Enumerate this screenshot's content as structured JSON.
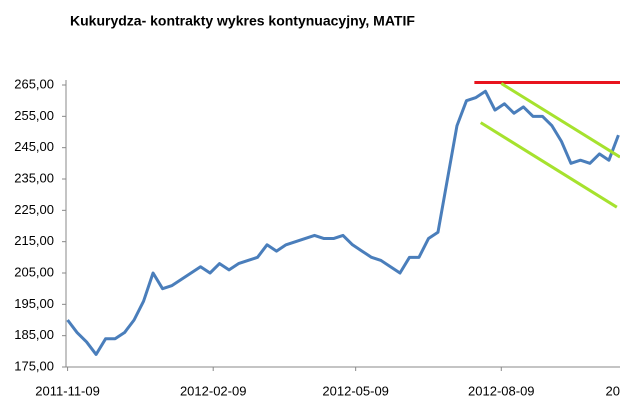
{
  "chart_data": {
    "type": "line",
    "title": "Kukurydza- kontrakty wykres kontynuacyjny, MATIF",
    "x": [
      "2011-11-09",
      "2011-11-15",
      "2011-11-21",
      "2011-11-27",
      "2011-12-03",
      "2011-12-09",
      "2011-12-15",
      "2011-12-21",
      "2011-12-27",
      "2012-01-02",
      "2012-01-08",
      "2012-01-14",
      "2012-01-20",
      "2012-01-26",
      "2012-02-01",
      "2012-02-07",
      "2012-02-13",
      "2012-02-19",
      "2012-02-25",
      "2012-03-02",
      "2012-03-08",
      "2012-03-14",
      "2012-03-20",
      "2012-03-26",
      "2012-04-01",
      "2012-04-07",
      "2012-04-13",
      "2012-04-19",
      "2012-04-25",
      "2012-05-01",
      "2012-05-07",
      "2012-05-13",
      "2012-05-19",
      "2012-05-25",
      "2012-05-31",
      "2012-06-06",
      "2012-06-12",
      "2012-06-18",
      "2012-06-24",
      "2012-06-30",
      "2012-07-06",
      "2012-07-12",
      "2012-07-18",
      "2012-07-24",
      "2012-07-30",
      "2012-08-05",
      "2012-08-11",
      "2012-08-17",
      "2012-08-23",
      "2012-08-29",
      "2012-09-04",
      "2012-09-10",
      "2012-09-16",
      "2012-09-22",
      "2012-09-28",
      "2012-10-04",
      "2012-10-10",
      "2012-10-16",
      "2012-10-22"
    ],
    "series": [
      {
        "color": "#4a7ebb",
        "values": [
          190,
          186,
          183,
          179,
          184,
          184,
          186,
          190,
          196,
          205,
          200,
          201,
          203,
          205,
          207,
          205,
          208,
          206,
          208,
          209,
          210,
          214,
          212,
          214,
          215,
          216,
          217,
          216,
          216,
          217,
          214,
          212,
          210,
          209,
          207,
          205,
          210,
          210,
          216,
          218,
          235,
          252,
          260,
          261,
          263,
          257,
          259,
          256,
          258,
          255,
          255,
          252,
          247,
          240,
          241,
          240,
          243,
          241,
          249
        ]
      }
    ],
    "annotations": [
      {
        "color": "#e8141e",
        "x": [
          "2012-07-23",
          "2012-10-23"
        ],
        "values": [
          265.8,
          265.8
        ]
      },
      {
        "color": "#a6e22e",
        "x": [
          "2012-08-09",
          "2012-10-23"
        ],
        "values": [
          265.5,
          242
        ]
      },
      {
        "color": "#a6e22e",
        "x": [
          "2012-07-27",
          "2012-10-21"
        ],
        "values": [
          253,
          226
        ]
      }
    ],
    "xlim": [
      "2011-11-08",
      "2012-10-23"
    ],
    "xticks": [
      "2011-11-09",
      "2012-02-09",
      "2012-05-09",
      "2012-08-09",
      {
        "value": "2012-11-09",
        "label": "20"
      }
    ],
    "ylim": [
      175,
      265
    ],
    "yticks": [
      {
        "value": 175,
        "label": "175,00"
      },
      {
        "value": 185,
        "label": "185,00"
      },
      {
        "value": 195,
        "label": "195,00"
      },
      {
        "value": 205,
        "label": "205,00"
      },
      {
        "value": 215,
        "label": "215,00"
      },
      {
        "value": 225,
        "label": "225,00"
      },
      {
        "value": 235,
        "label": "235,00"
      },
      {
        "value": 245,
        "label": "245,00"
      },
      {
        "value": 255,
        "label": "255,00"
      },
      {
        "value": 265,
        "label": "265,00"
      }
    ],
    "grid": false
  }
}
